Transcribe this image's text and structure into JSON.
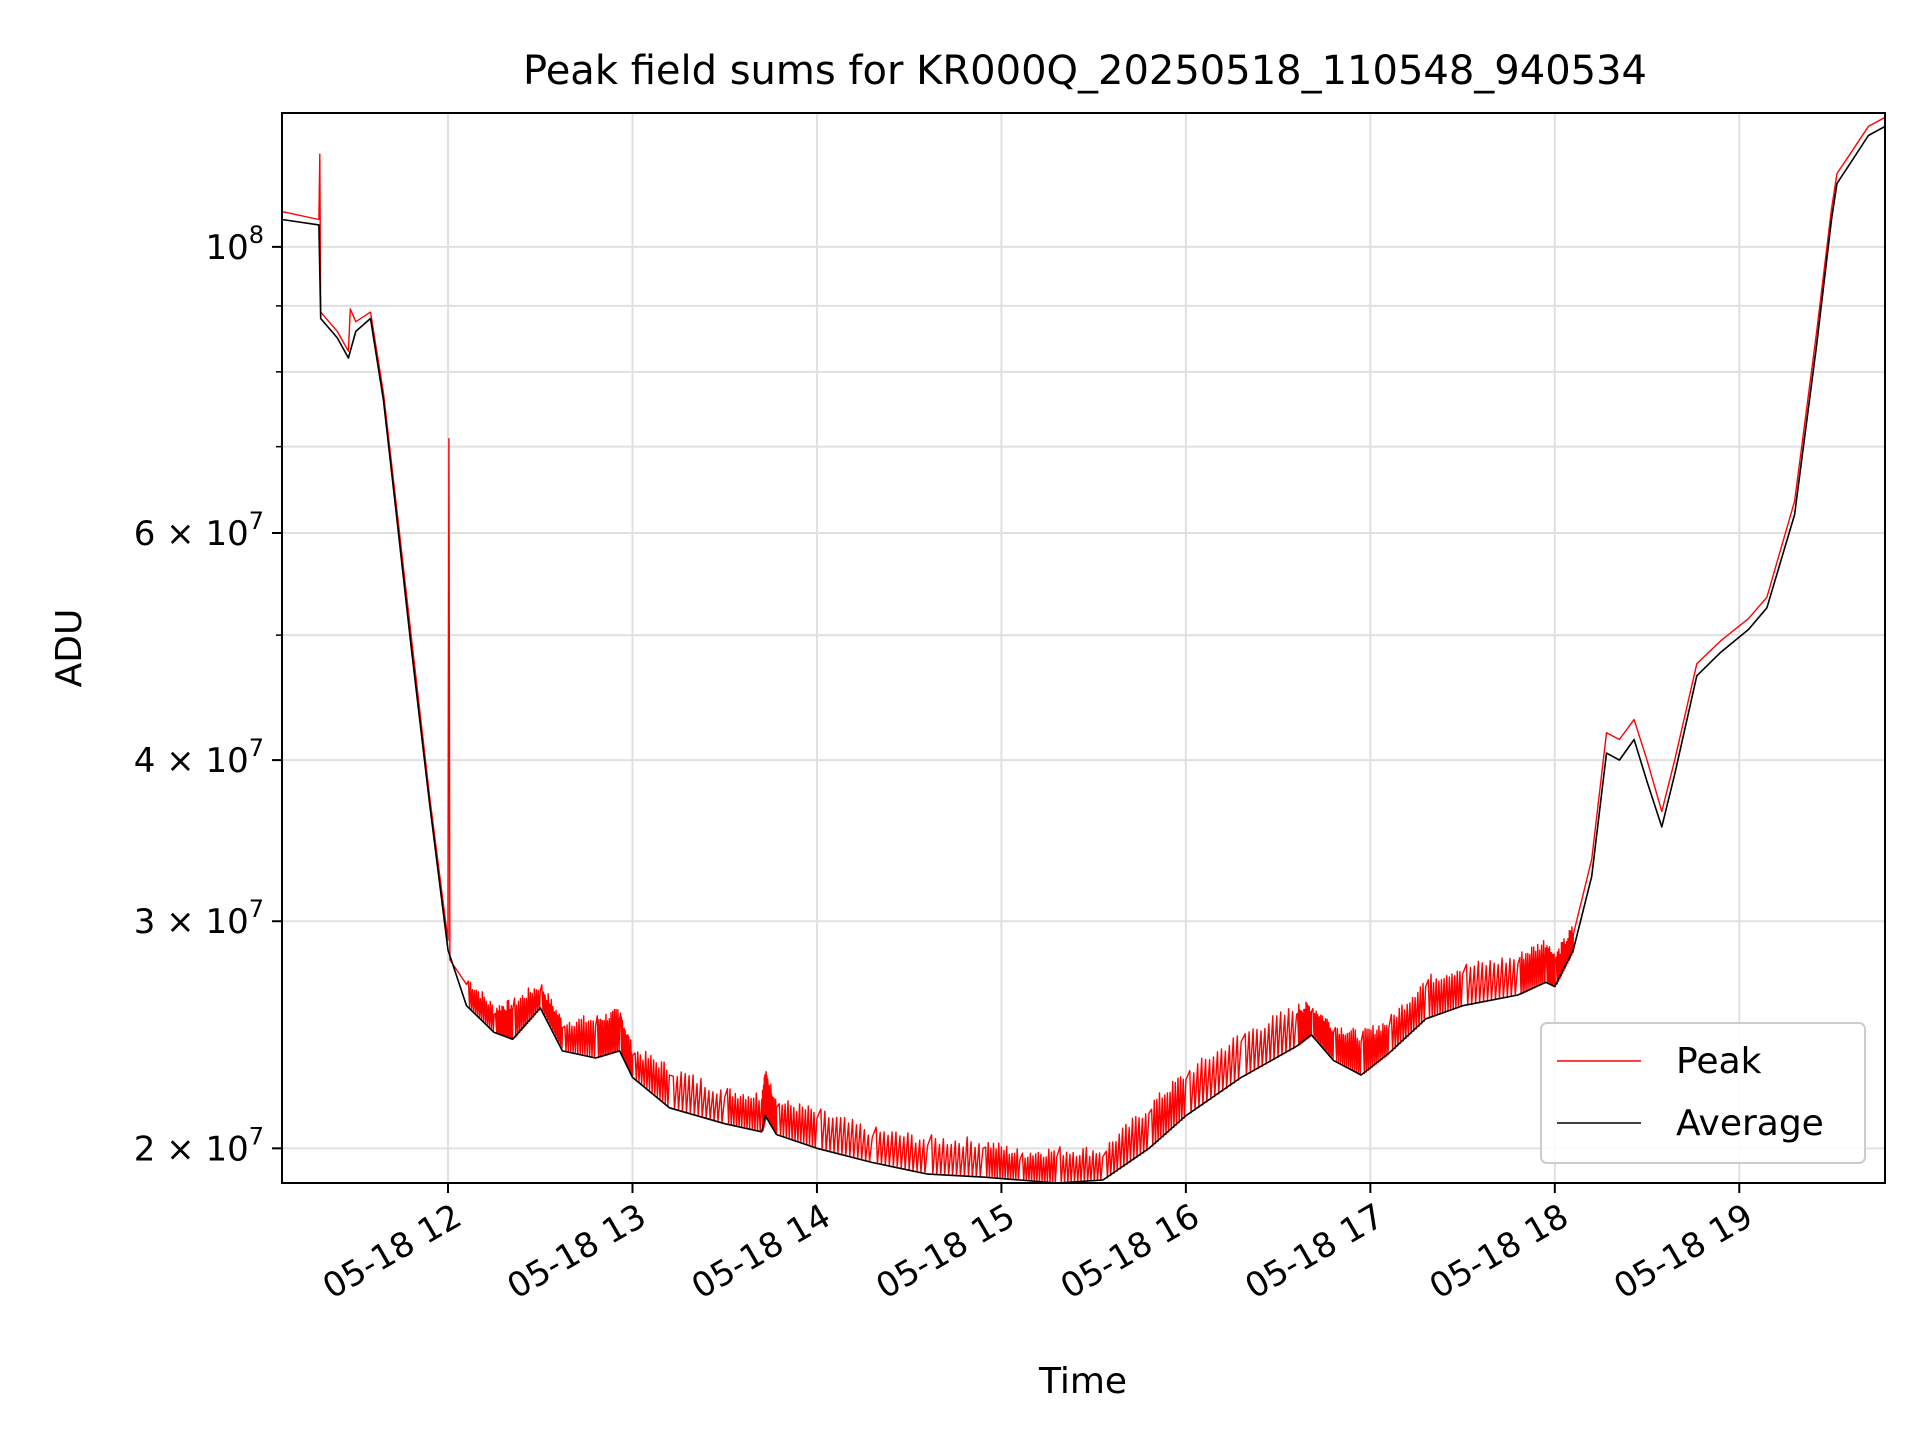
{
  "chart_data": {
    "type": "line",
    "title": "Peak field sums for KR000Q_20250518_110548_940534",
    "xlabel": "Time",
    "ylabel": "ADU",
    "x_unit": "hours",
    "x_range": [
      11.1,
      19.79
    ],
    "y_scale": "log",
    "y_range": [
      18800000,
      127000000
    ],
    "grid": true,
    "legend_position": "lower-right",
    "x_ticks": [
      {
        "value": 12,
        "label": "05-18 12"
      },
      {
        "value": 13,
        "label": "05-18 13"
      },
      {
        "value": 14,
        "label": "05-18 14"
      },
      {
        "value": 15,
        "label": "05-18 15"
      },
      {
        "value": 16,
        "label": "05-18 16"
      },
      {
        "value": 17,
        "label": "05-18 17"
      },
      {
        "value": 18,
        "label": "05-18 18"
      },
      {
        "value": 19,
        "label": "05-18 19"
      }
    ],
    "y_major_ticks": [
      {
        "value": 100000000,
        "base": "10",
        "exp": "8"
      },
      {
        "value": 60000000,
        "base": "6 × 10",
        "exp": "7"
      },
      {
        "value": 40000000,
        "base": "4 × 10",
        "exp": "7"
      },
      {
        "value": 30000000,
        "base": "3 × 10",
        "exp": "7"
      },
      {
        "value": 20000000,
        "base": "2 × 10",
        "exp": "7"
      }
    ],
    "y_minor_ticks": [
      50000000,
      70000000,
      80000000,
      90000000
    ],
    "series": [
      {
        "name": "Average",
        "color": "#000000",
        "points": [
          [
            11.1,
            105000000
          ],
          [
            11.3,
            104000000
          ],
          [
            11.31,
            88000000
          ],
          [
            11.4,
            85000000
          ],
          [
            11.46,
            82000000
          ],
          [
            11.5,
            86000000
          ],
          [
            11.58,
            88000000
          ],
          [
            11.65,
            76000000
          ],
          [
            11.72,
            62000000
          ],
          [
            11.8,
            49000000
          ],
          [
            11.9,
            37000000
          ],
          [
            12.0,
            28500000
          ],
          [
            12.1,
            25800000
          ],
          [
            12.25,
            24600000
          ],
          [
            12.35,
            24300000
          ],
          [
            12.5,
            25700000
          ],
          [
            12.62,
            23800000
          ],
          [
            12.8,
            23500000
          ],
          [
            12.93,
            23800000
          ],
          [
            13.0,
            22700000
          ],
          [
            13.2,
            21500000
          ],
          [
            13.5,
            20900000
          ],
          [
            13.7,
            20600000
          ],
          [
            13.72,
            21200000
          ],
          [
            13.78,
            20500000
          ],
          [
            14.0,
            20000000
          ],
          [
            14.3,
            19500000
          ],
          [
            14.6,
            19100000
          ],
          [
            14.9,
            19000000
          ],
          [
            15.1,
            18900000
          ],
          [
            15.3,
            18800000
          ],
          [
            15.55,
            18900000
          ],
          [
            15.8,
            20000000
          ],
          [
            16.0,
            21200000
          ],
          [
            16.3,
            22700000
          ],
          [
            16.6,
            24000000
          ],
          [
            16.68,
            24500000
          ],
          [
            16.8,
            23400000
          ],
          [
            16.95,
            22800000
          ],
          [
            17.1,
            23700000
          ],
          [
            17.3,
            25200000
          ],
          [
            17.5,
            25800000
          ],
          [
            17.8,
            26300000
          ],
          [
            17.95,
            26900000
          ],
          [
            18.0,
            26700000
          ],
          [
            18.1,
            28500000
          ],
          [
            18.2,
            32500000
          ],
          [
            18.28,
            40500000
          ],
          [
            18.35,
            40000000
          ],
          [
            18.43,
            41500000
          ],
          [
            18.5,
            38500000
          ],
          [
            18.58,
            35500000
          ],
          [
            18.65,
            39000000
          ],
          [
            18.77,
            46500000
          ],
          [
            18.9,
            48500000
          ],
          [
            19.05,
            50500000
          ],
          [
            19.15,
            52500000
          ],
          [
            19.3,
            62000000
          ],
          [
            19.42,
            84000000
          ],
          [
            19.5,
            105000000
          ],
          [
            19.53,
            112000000
          ],
          [
            19.6,
            116000000
          ],
          [
            19.7,
            122000000
          ],
          [
            19.79,
            124000000
          ]
        ]
      },
      {
        "name": "Peak",
        "color": "#ff0000",
        "points": [
          [
            11.1,
            106500000
          ],
          [
            11.3,
            105000000
          ],
          [
            11.305,
            118000000
          ],
          [
            11.31,
            89000000
          ],
          [
            11.4,
            86000000
          ],
          [
            11.46,
            83000000
          ],
          [
            11.47,
            89500000
          ],
          [
            11.5,
            87500000
          ],
          [
            11.58,
            89000000
          ],
          [
            11.65,
            77000000
          ],
          [
            11.72,
            63000000
          ],
          [
            11.8,
            50000000
          ],
          [
            11.9,
            37500000
          ],
          [
            12.0,
            29000000
          ],
          [
            12.005,
            71000000
          ],
          [
            12.01,
            28000000
          ],
          [
            12.1,
            26800000
          ],
          [
            12.25,
            25400000
          ],
          [
            12.35,
            25600000
          ],
          [
            12.5,
            26500000
          ],
          [
            12.62,
            24800000
          ],
          [
            12.8,
            24900000
          ],
          [
            12.93,
            25200000
          ],
          [
            13.0,
            23600000
          ],
          [
            13.2,
            22800000
          ],
          [
            13.5,
            21900000
          ],
          [
            13.7,
            21700000
          ],
          [
            13.72,
            22600000
          ],
          [
            13.78,
            21500000
          ],
          [
            14.0,
            21100000
          ],
          [
            14.3,
            20400000
          ],
          [
            14.6,
            20100000
          ],
          [
            14.9,
            20000000
          ],
          [
            15.1,
            19600000
          ],
          [
            15.3,
            19700000
          ],
          [
            15.55,
            19700000
          ],
          [
            15.8,
            21300000
          ],
          [
            16.0,
            22600000
          ],
          [
            16.3,
            24200000
          ],
          [
            16.6,
            25400000
          ],
          [
            16.68,
            25500000
          ],
          [
            16.8,
            24600000
          ],
          [
            16.95,
            24200000
          ],
          [
            17.1,
            24800000
          ],
          [
            17.3,
            26700000
          ],
          [
            17.5,
            27300000
          ],
          [
            17.8,
            27800000
          ],
          [
            17.95,
            28600000
          ],
          [
            18.0,
            27800000
          ],
          [
            18.1,
            29300000
          ],
          [
            18.2,
            33500000
          ],
          [
            18.28,
            42000000
          ],
          [
            18.35,
            41500000
          ],
          [
            18.43,
            43000000
          ],
          [
            18.5,
            40000000
          ],
          [
            18.58,
            36500000
          ],
          [
            18.65,
            40000000
          ],
          [
            18.77,
            47500000
          ],
          [
            18.9,
            49500000
          ],
          [
            19.05,
            51500000
          ],
          [
            19.15,
            53500000
          ],
          [
            19.3,
            63500000
          ],
          [
            19.42,
            86000000
          ],
          [
            19.5,
            107000000
          ],
          [
            19.53,
            114000000
          ],
          [
            19.6,
            118000000
          ],
          [
            19.7,
            124000000
          ],
          [
            19.79,
            126000000
          ]
        ]
      }
    ],
    "legend": [
      {
        "label": "Peak",
        "color": "#ff0000"
      },
      {
        "label": "Average",
        "color": "#000000"
      }
    ]
  }
}
